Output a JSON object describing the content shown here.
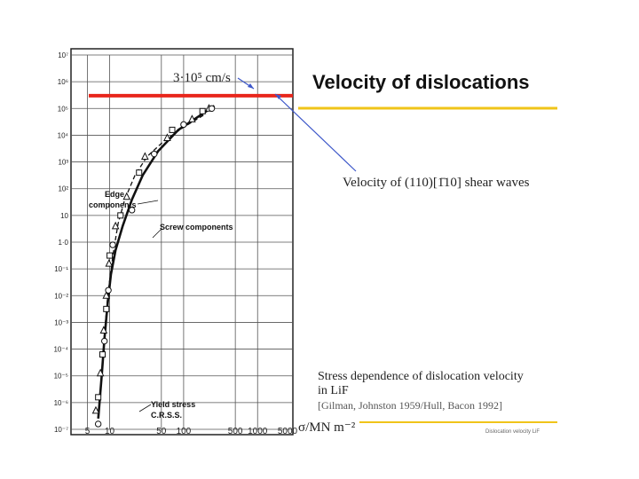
{
  "title": "Velocity of dislocations",
  "annotation_speed": "3·10⁵ cm/s",
  "annotation_shear": "Velocity of (110)[1̄10] shear waves",
  "x_axis_label": "σ/MN m⁻²",
  "caption_line1": "Stress dependence of dislocation velocity",
  "caption_line2": "in LiF",
  "citation": "[Gilman, Johnston 1959/Hull, Bacon 1992]",
  "footer": "Dislocation velocity LiF",
  "colors": {
    "limit_line": "#e8261c",
    "accent_line": "#f0c419",
    "arrow": "#3d57c9"
  },
  "chart_data": {
    "type": "scatter",
    "xscale": "log",
    "yscale": "log",
    "xlim": [
      3,
      3000
    ],
    "ylim": [
      -7,
      7
    ],
    "x_ticks": [
      "5",
      "10",
      "50",
      "100",
      "500",
      "1000",
      "5000"
    ],
    "y_ticks": [
      "10⁻⁷",
      "10⁻⁶",
      "10⁻⁵",
      "10⁻⁴",
      "10⁻³",
      "10⁻²",
      "10⁻¹",
      "1·0",
      "10",
      "10²",
      "10³",
      "10⁴",
      "10⁵",
      "10⁶",
      "10⁷"
    ],
    "grid": true,
    "series": [
      {
        "name": "Edge components",
        "style": "dashed",
        "points": [
          [
            7.2,
            -6.0
          ],
          [
            8.0,
            -4.7
          ],
          [
            8.6,
            -3.3
          ],
          [
            9.3,
            -2.2
          ],
          [
            10.2,
            -1.2
          ],
          [
            11.5,
            -0.2
          ],
          [
            13,
            0.7
          ],
          [
            16,
            1.6
          ],
          [
            22,
            2.5
          ],
          [
            32,
            3.2
          ],
          [
            55,
            3.8
          ],
          [
            100,
            4.3
          ],
          [
            200,
            4.8
          ]
        ]
      },
      {
        "name": "Screw components",
        "style": "solid",
        "points": [
          [
            7.0,
            -6.6
          ],
          [
            7.8,
            -5.0
          ],
          [
            8.5,
            -3.6
          ],
          [
            9.4,
            -2.3
          ],
          [
            10.4,
            -1.2
          ],
          [
            12,
            -0.3
          ],
          [
            15,
            0.6
          ],
          [
            20,
            1.6
          ],
          [
            28,
            2.5
          ],
          [
            45,
            3.4
          ],
          [
            85,
            4.2
          ],
          [
            180,
            4.8
          ],
          [
            260,
            5.1
          ]
        ]
      }
    ],
    "points_triangle": [
      [
        6.5,
        -6.3
      ],
      [
        7.5,
        -4.9
      ],
      [
        8.3,
        -3.3
      ],
      [
        9.0,
        -2.0
      ],
      [
        9.8,
        -0.8
      ],
      [
        12,
        0.6
      ],
      [
        17,
        1.7
      ],
      [
        30,
        3.2
      ],
      [
        60,
        3.9
      ],
      [
        130,
        4.6
      ],
      [
        220,
        5.0
      ]
    ],
    "points_square": [
      [
        7.0,
        -5.8
      ],
      [
        8.0,
        -4.2
      ],
      [
        9.0,
        -2.5
      ],
      [
        10.0,
        -0.5
      ],
      [
        14,
        1.0
      ],
      [
        25,
        2.6
      ],
      [
        70,
        4.2
      ],
      [
        180,
        4.9
      ]
    ],
    "points_circle": [
      [
        7.0,
        -6.8
      ],
      [
        8.5,
        -3.7
      ],
      [
        9.6,
        -1.8
      ],
      [
        11,
        -0.1
      ],
      [
        20,
        1.2
      ],
      [
        40,
        3.3
      ],
      [
        100,
        4.4
      ],
      [
        240,
        5.0
      ]
    ],
    "labels": {
      "edge": [
        "Edge",
        "components"
      ],
      "screw": "Screw components",
      "yield": [
        "Yield stress",
        "C.R.S.S."
      ]
    },
    "limit_line_value": 5.48
  }
}
